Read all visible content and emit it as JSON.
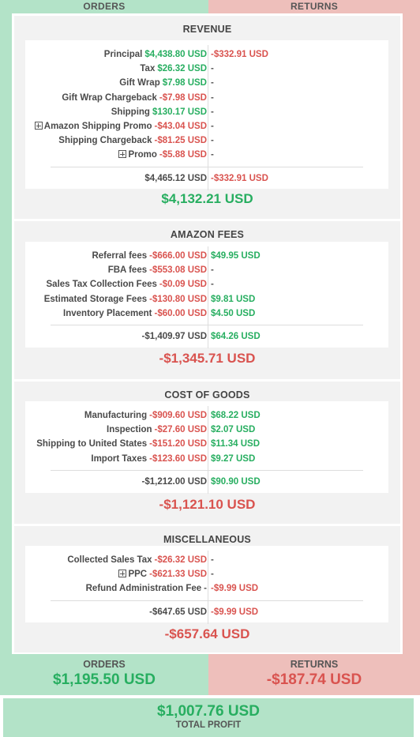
{
  "header": {
    "orders_label": "ORDERS",
    "returns_label": "RETURNS"
  },
  "revenue": {
    "title": "REVENUE",
    "rows": [
      {
        "label": "Principal",
        "order": "$4,438.80 USD",
        "ret": "-$332.91 USD"
      },
      {
        "label": "Tax",
        "order": "$26.32 USD",
        "ret": "-"
      },
      {
        "label": "Gift Wrap",
        "order": "$7.98 USD",
        "ret": "-"
      },
      {
        "label": "Gift Wrap Chargeback",
        "order": "-$7.98 USD",
        "ret": "-"
      },
      {
        "label": "Shipping",
        "order": "$130.17 USD",
        "ret": "-"
      },
      {
        "label": "Amazon Shipping Promo",
        "order": "-$43.04 USD",
        "ret": "-",
        "expandable": true
      },
      {
        "label": "Shipping Chargeback",
        "order": "-$81.25 USD",
        "ret": "-"
      },
      {
        "label": "Promo",
        "order": "-$5.88 USD",
        "ret": "-",
        "expandable": true
      }
    ],
    "subtotal_order": "$4,465.12 USD",
    "subtotal_ret": "-$332.91 USD",
    "total": "$4,132.21 USD"
  },
  "amazon_fees": {
    "title": "AMAZON FEES",
    "rows": [
      {
        "label": "Referral fees",
        "order": "-$666.00 USD",
        "ret": "$49.95 USD"
      },
      {
        "label": "FBA fees",
        "order": "-$553.08 USD",
        "ret": "-"
      },
      {
        "label": "Sales Tax Collection Fees",
        "order": "-$0.09 USD",
        "ret": "-"
      },
      {
        "label": "Estimated Storage Fees",
        "order": "-$130.80 USD",
        "ret": "$9.81 USD"
      },
      {
        "label": "Inventory Placement",
        "order": "-$60.00 USD",
        "ret": "$4.50 USD"
      }
    ],
    "subtotal_order": "-$1,409.97 USD",
    "subtotal_ret": "$64.26 USD",
    "total": "-$1,345.71 USD"
  },
  "cost_of_goods": {
    "title": "COST OF GOODS",
    "rows": [
      {
        "label": "Manufacturing",
        "order": "-$909.60 USD",
        "ret": "$68.22 USD"
      },
      {
        "label": "Inspection",
        "order": "-$27.60 USD",
        "ret": "$2.07 USD"
      },
      {
        "label": "Shipping to United States",
        "order": "-$151.20 USD",
        "ret": "$11.34 USD"
      },
      {
        "label": "Import Taxes",
        "order": "-$123.60 USD",
        "ret": "$9.27 USD"
      }
    ],
    "subtotal_order": "-$1,212.00 USD",
    "subtotal_ret": "$90.90 USD",
    "total": "-$1,121.10 USD"
  },
  "miscellaneous": {
    "title": "MISCELLANEOUS",
    "rows": [
      {
        "label": "Collected Sales Tax",
        "order": "-$26.32 USD",
        "ret": "-"
      },
      {
        "label": "PPC",
        "order": "-$621.33 USD",
        "ret": "-",
        "expandable": true
      },
      {
        "label": "Refund Administration Fee",
        "order": "-",
        "ret": "-$9.99 USD"
      }
    ],
    "subtotal_order": "-$647.65 USD",
    "subtotal_ret": "-$9.99 USD",
    "total": "-$657.64 USD"
  },
  "summary": {
    "orders_label": "ORDERS",
    "orders_value": "$1,195.50 USD",
    "returns_label": "RETURNS",
    "returns_value": "-$187.74 USD"
  },
  "total_profit": {
    "value": "$1,007.76 USD",
    "label": "TOTAL PROFIT"
  },
  "colors": {
    "positive": "#27ae60",
    "negative": "#d9534f",
    "orders_bg": "#b3e3c8",
    "returns_bg": "#eebfbb"
  }
}
